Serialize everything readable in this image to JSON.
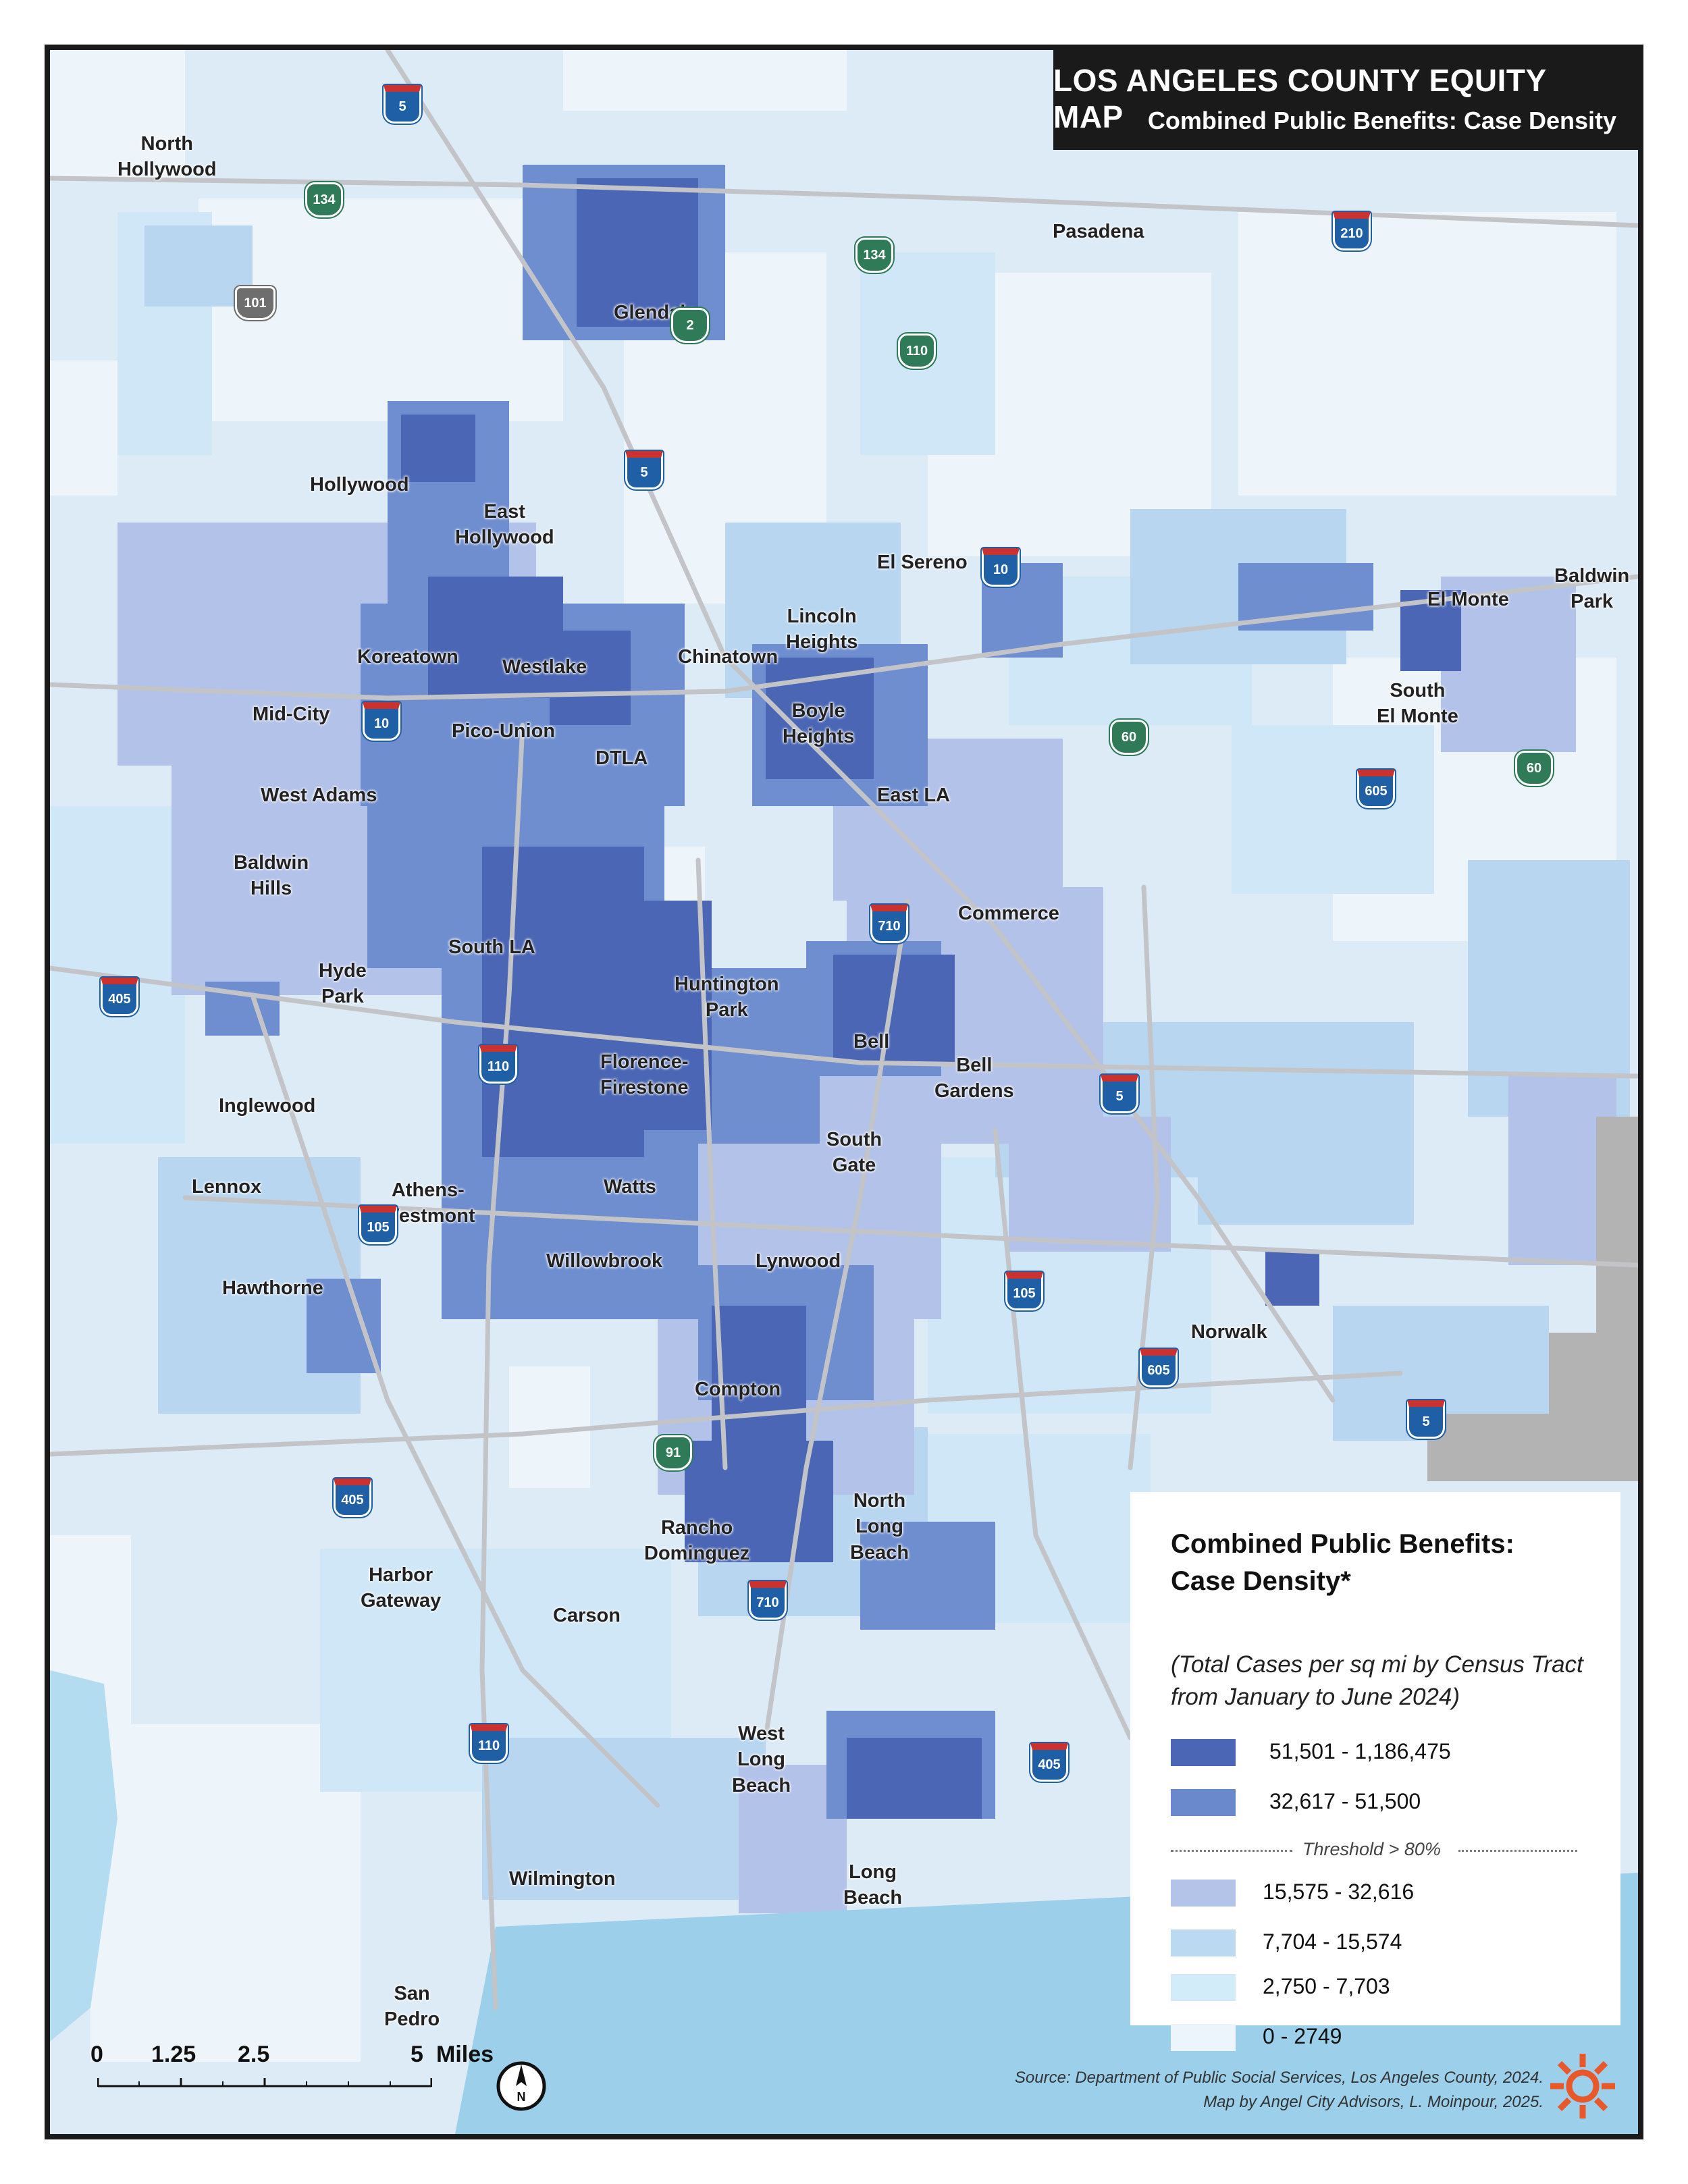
{
  "title": "LOS ANGELES COUNTY EQUITY MAP",
  "subtitle": "Combined Public Benefits: Case Density",
  "colors": {
    "class_1": "#4a66b4",
    "class_2": "#6a88cc",
    "class_3": "#b4c4e8",
    "class_4": "#bcd9f2",
    "class_5": "#d3ecf9",
    "class_6": "#ecf5fb",
    "water": "#9cd0ea",
    "roads": "#c8c8c8",
    "outside_area": "#b3b3b3"
  },
  "places": [
    "North\nHollywood",
    "Pasadena",
    "Glendale",
    "Hollywood",
    "East\nHollywood",
    "El Sereno",
    "Lincoln\nHeights",
    "El Monte",
    "Baldwin\nPark",
    "Koreatown",
    "Westlake",
    "Chinatown",
    "South\nEl Monte",
    "Mid-City",
    "Pico-Union",
    "DTLA",
    "Boyle\nHeights",
    "West Adams",
    "East LA",
    "Baldwin\nHills",
    "Commerce",
    "South LA",
    "Hyde\nPark",
    "Huntington\nPark",
    "Bell",
    "Bell\nGardens",
    "Florence-\nFirestone",
    "Inglewood",
    "South\nGate",
    "Lennox",
    "Athens-\nWestmont",
    "Watts",
    "Willowbrook",
    "Lynwood",
    "Hawthorne",
    "Norwalk",
    "Compton",
    "North\nLong\nBeach",
    "Rancho\nDominguez",
    "Harbor\nGateway",
    "Carson",
    "West\nLong\nBeach",
    "Long\nBeach",
    "Wilmington",
    "San\nPedro"
  ],
  "highways": {
    "interstate": [
      "5",
      "5",
      "5",
      "10",
      "10",
      "105",
      "105",
      "110",
      "110",
      "210",
      "405",
      "405",
      "405",
      "605",
      "605",
      "710",
      "710",
      "5"
    ],
    "state": [
      "134",
      "134",
      "2",
      "110",
      "60",
      "60",
      "91"
    ],
    "us": [
      "101"
    ]
  },
  "legend": {
    "title": "Combined Public Benefits:\nCase Density*",
    "note": "(Total Cases per sq mi by Census Tract\nfrom January to June 2024)",
    "classes": [
      {
        "label": "51,501 - 1,186,475",
        "color_key": "class_1"
      },
      {
        "label": "32,617 - 51,500",
        "color_key": "class_2"
      },
      {
        "label": "15,575 - 32,616",
        "color_key": "class_3"
      },
      {
        "label": "7,704 - 15,574",
        "color_key": "class_4"
      },
      {
        "label": "2,750 - 7,703",
        "color_key": "class_5"
      },
      {
        "label": "0 - 2749",
        "color_key": "class_6"
      }
    ],
    "threshold": "Threshold > 80%"
  },
  "scale": {
    "ticks": [
      "0",
      "1.25",
      "2.5",
      "5"
    ],
    "unit": "Miles"
  },
  "north_label": "N",
  "source": "Source: Department of Public Social Services, Los Angeles County, 2024.\nMap by Angel City Advisors, L. Moinpour, 2025."
}
